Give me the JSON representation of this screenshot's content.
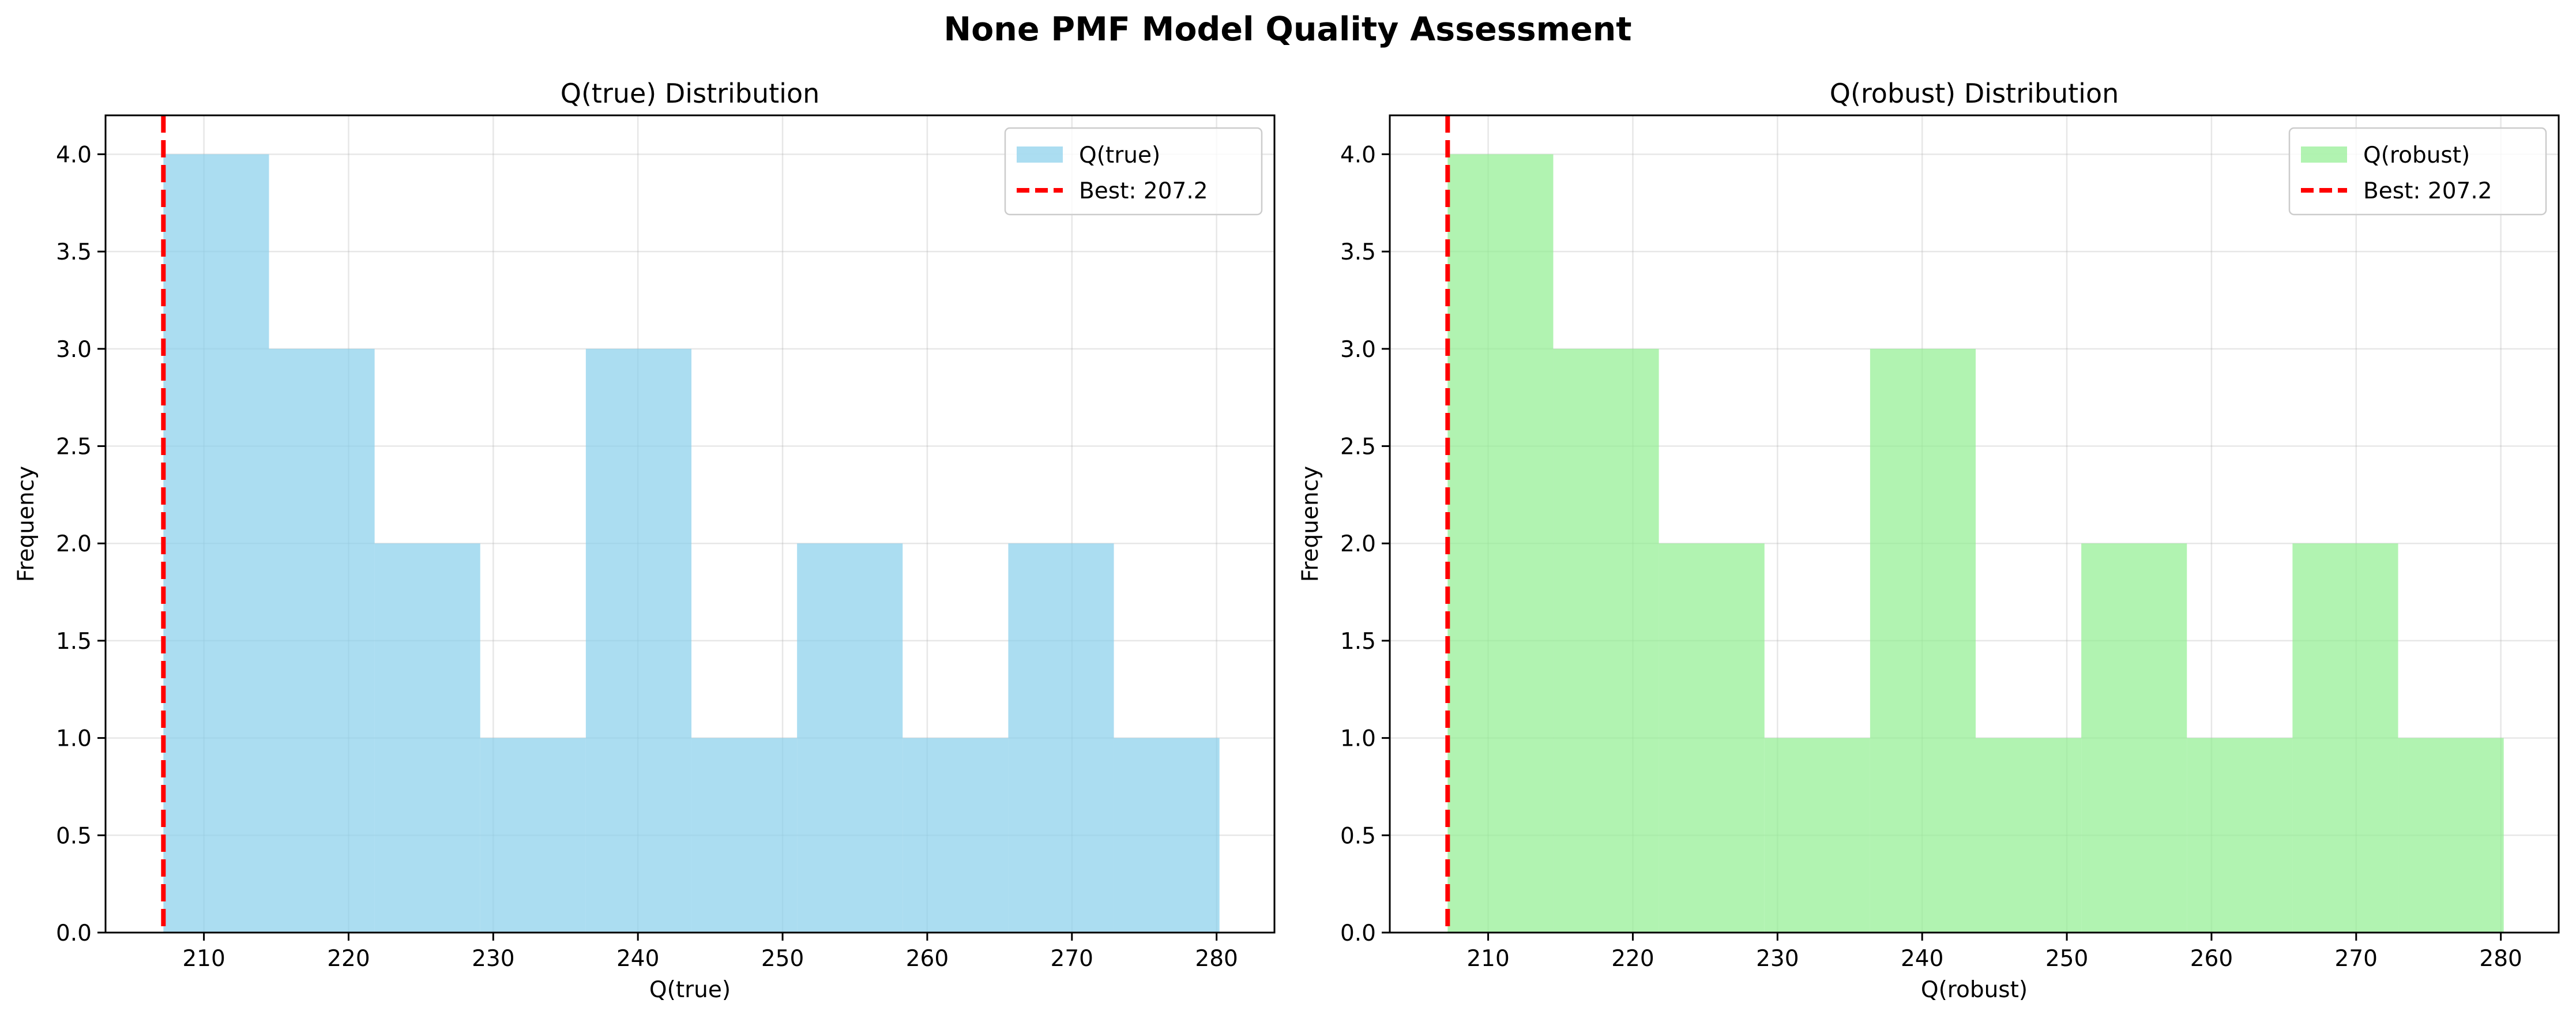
{
  "suptitle": "None PMF Model Quality Assessment",
  "chart_data": [
    {
      "type": "bar",
      "title": "Q(true) Distribution",
      "xlabel": "Q(true)",
      "ylabel": "Frequency",
      "xlim": [
        203.2,
        284.0
      ],
      "ylim": [
        0,
        4.2
      ],
      "xticks": [
        210,
        220,
        230,
        240,
        250,
        260,
        270,
        280
      ],
      "yticks": [
        0.0,
        0.5,
        1.0,
        1.5,
        2.0,
        2.5,
        3.0,
        3.5,
        4.0
      ],
      "bin_edges": [
        207.2,
        214.5,
        221.8,
        229.1,
        236.4,
        243.7,
        251.0,
        258.3,
        265.6,
        272.9,
        280.2
      ],
      "counts": [
        4,
        3,
        2,
        1,
        3,
        1,
        2,
        1,
        2,
        1
      ],
      "bar_color": "#87ceeb",
      "reference_line": {
        "value": 207.2,
        "color": "#ff0000",
        "style": "dashed"
      },
      "legend": [
        {
          "label": "Q(true)",
          "kind": "patch",
          "color": "#87ceeb"
        },
        {
          "label": "Best: 207.2",
          "kind": "line",
          "color": "#ff0000"
        }
      ],
      "legend_position": "top-right",
      "grid": true
    },
    {
      "type": "bar",
      "title": "Q(robust) Distribution",
      "xlabel": "Q(robust)",
      "ylabel": "Frequency",
      "xlim": [
        203.2,
        284.0
      ],
      "ylim": [
        0,
        4.2
      ],
      "xticks": [
        210,
        220,
        230,
        240,
        250,
        260,
        270,
        280
      ],
      "yticks": [
        0.0,
        0.5,
        1.0,
        1.5,
        2.0,
        2.5,
        3.0,
        3.5,
        4.0
      ],
      "bin_edges": [
        207.2,
        214.5,
        221.8,
        229.1,
        236.4,
        243.7,
        251.0,
        258.3,
        265.6,
        272.9,
        280.2
      ],
      "counts": [
        4,
        3,
        2,
        1,
        3,
        1,
        2,
        1,
        2,
        1
      ],
      "bar_color": "#90ee90",
      "reference_line": {
        "value": 207.2,
        "color": "#ff0000",
        "style": "dashed"
      },
      "legend": [
        {
          "label": "Q(robust)",
          "kind": "patch",
          "color": "#90ee90"
        },
        {
          "label": "Best: 207.2",
          "kind": "line",
          "color": "#ff0000"
        }
      ],
      "legend_position": "top-right",
      "grid": true
    }
  ]
}
